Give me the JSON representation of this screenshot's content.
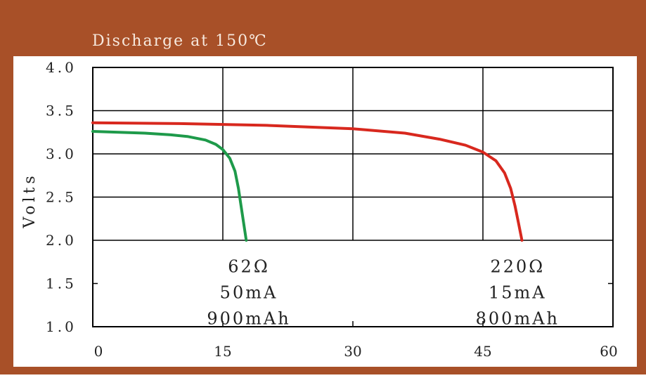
{
  "colors": {
    "frame": "#A85028",
    "title_text": "#F7E9DE",
    "panel": "#FFFFFF",
    "grid": "#000000",
    "text": "#222222"
  },
  "chart_data": {
    "type": "line",
    "title": "Discharge at 150℃",
    "xlabel": "",
    "ylabel": "Volts",
    "xlim": [
      0,
      60
    ],
    "ylim": [
      1.0,
      4.0
    ],
    "x_ticks": [
      0,
      15,
      30,
      45,
      60
    ],
    "x_tick_labels": [
      "0",
      "15",
      "30",
      "45",
      "60"
    ],
    "y_ticks": [
      4.0,
      3.5,
      3.0,
      2.5,
      2.0,
      1.5,
      1.0
    ],
    "y_tick_labels": [
      "4.0",
      "3.5",
      "3.0",
      "2.5",
      "2.0",
      "1.5",
      "1.0"
    ],
    "grid": "upper half full grid (2.0–4.0), lower half ticks only",
    "legend": "none",
    "series": [
      {
        "color": "#1E9A4A",
        "x": [
          0,
          3,
          6,
          9,
          11,
          13,
          14.2,
          15,
          15.8,
          16.4,
          16.8,
          17.1,
          17.4,
          17.7
        ],
        "y": [
          3.26,
          3.25,
          3.24,
          3.22,
          3.2,
          3.16,
          3.11,
          3.05,
          2.95,
          2.8,
          2.6,
          2.4,
          2.2,
          2.0
        ]
      },
      {
        "color": "#D8281E",
        "x": [
          0,
          10,
          20,
          30,
          36,
          40,
          43,
          45,
          46.5,
          47.5,
          48.2,
          48.7,
          49.1,
          49.5
        ],
        "y": [
          3.36,
          3.35,
          3.33,
          3.29,
          3.24,
          3.17,
          3.1,
          3.02,
          2.92,
          2.78,
          2.6,
          2.4,
          2.2,
          2.0
        ]
      }
    ],
    "annotations": [
      {
        "lines": [
          "62Ω",
          "50mA",
          "900mAh"
        ],
        "x": 18,
        "y": 1.85
      },
      {
        "lines": [
          "220Ω",
          "15mA",
          "800mAh"
        ],
        "x": 49,
        "y": 1.85
      }
    ]
  }
}
